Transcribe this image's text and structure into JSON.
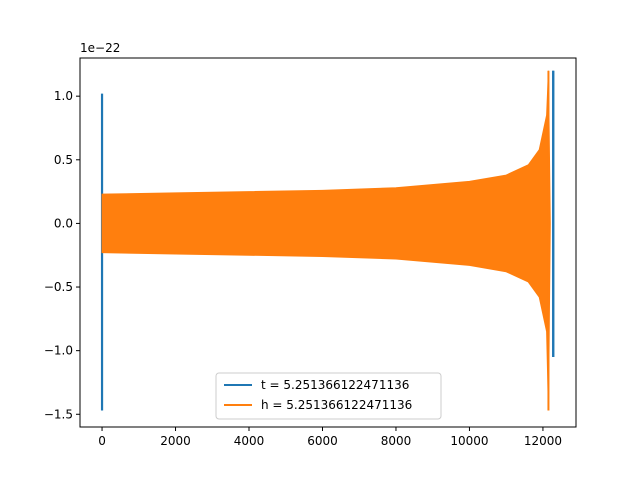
{
  "chart_data": {
    "type": "line",
    "title": "",
    "xlabel": "",
    "ylabel": "",
    "y_offset_label": "1e−22",
    "xlim": [
      -600,
      12900
    ],
    "ylim": [
      -1.6,
      1.3
    ],
    "x_ticks": [
      {
        "value": 0,
        "label": "0"
      },
      {
        "value": 2000,
        "label": "2000"
      },
      {
        "value": 4000,
        "label": "4000"
      },
      {
        "value": 6000,
        "label": "6000"
      },
      {
        "value": 8000,
        "label": "8000"
      },
      {
        "value": 10000,
        "label": "10000"
      },
      {
        "value": 12000,
        "label": "12000"
      }
    ],
    "y_ticks": [
      {
        "value": 1.0,
        "label": "1.0"
      },
      {
        "value": 0.5,
        "label": "0.5"
      },
      {
        "value": 0.0,
        "label": "0.0"
      },
      {
        "value": -0.5,
        "label": "−0.5"
      },
      {
        "value": -1.0,
        "label": "−1.0"
      },
      {
        "value": -1.5,
        "label": "−1.5"
      }
    ],
    "grid": false,
    "legend_position": "lower-center",
    "series": [
      {
        "name": "t = 5.251366122471136",
        "color": "#1f77b4",
        "description_points": [
          {
            "x": 0,
            "y": 1.02
          },
          {
            "x": 0,
            "y": -1.47
          },
          {
            "x": 12280,
            "y": 1.2
          },
          {
            "x": 12280,
            "y": -1.05
          }
        ]
      },
      {
        "name": "h = 5.251366122471136",
        "color": "#ff7f0e",
        "envelope": {
          "x": [
            0,
            2000,
            4000,
            6000,
            8000,
            10000,
            11000,
            11600,
            11900,
            12100,
            12150,
            12200
          ],
          "upper": [
            0.23,
            0.24,
            0.25,
            0.26,
            0.28,
            0.33,
            0.38,
            0.46,
            0.58,
            0.85,
            1.2,
            0.0
          ],
          "lower": [
            -0.23,
            -0.24,
            -0.25,
            -0.26,
            -0.28,
            -0.33,
            -0.38,
            -0.46,
            -0.58,
            -0.85,
            -1.47,
            0.0
          ]
        }
      }
    ]
  }
}
